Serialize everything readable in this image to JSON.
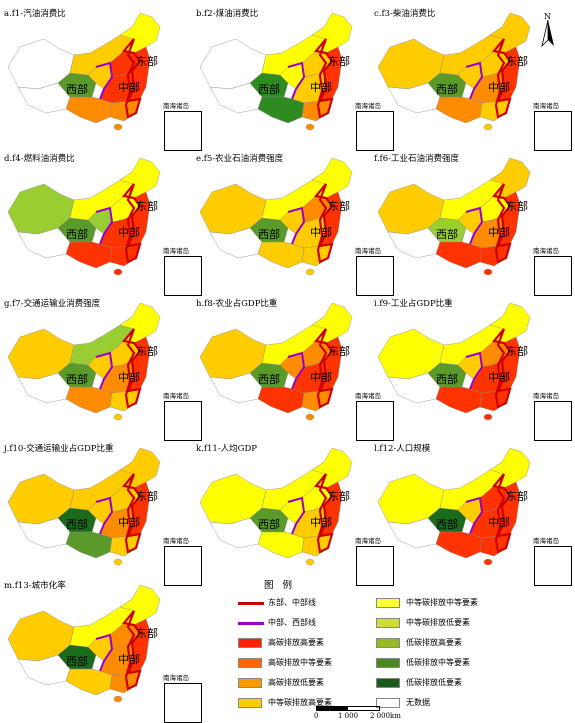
{
  "panels": [
    {
      "title": "a.f1-汽油消费比",
      "colors": {
        "northeast": "#ffff00",
        "north": "#ff3300",
        "east": "#ff3300",
        "central": "#ff3300",
        "south": "#ff8c00",
        "southwest": "#ff8c00",
        "northwest": "#ffcc00",
        "tibet": "#ffffff",
        "xinjiang": "#ffffff",
        "inner": "#ffcc00",
        "qinghai": "#5a9a2a"
      }
    },
    {
      "title": "b.f2-煤油消费比",
      "colors": {
        "northeast": "#ffff00",
        "north": "#ffcc00",
        "east": "#ff3300",
        "central": "#ffcc00",
        "south": "#ff8c00",
        "southwest": "#2e8b1f",
        "northwest": "#ffff00",
        "tibet": "#ffffff",
        "xinjiang": "#ffffff",
        "inner": "#ffff00",
        "qinghai": "#2e8b1f"
      }
    },
    {
      "title": "c.f3-柴油消费比",
      "colors": {
        "northeast": "#ffcc00",
        "north": "#ffcc00",
        "east": "#ff3300",
        "central": "#ff8c00",
        "south": "#ffcc00",
        "southwest": "#ff8c00",
        "northwest": "#ffcc00",
        "tibet": "#ffffff",
        "xinjiang": "#ffcc00",
        "inner": "#ffcc00",
        "qinghai": "#5a9a2a"
      }
    },
    {
      "title": "d.f4-燃料油消费比",
      "colors": {
        "northeast": "#ffff00",
        "north": "#ffff00",
        "east": "#ff3300",
        "central": "#ff3300",
        "south": "#ff3300",
        "southwest": "#ff3300",
        "northwest": "#9acd32",
        "tibet": "#ffffff",
        "xinjiang": "#9acd32",
        "inner": "#ffff00",
        "qinghai": "#5a9a2a"
      }
    },
    {
      "title": "e.f5-农业石油消费强度",
      "colors": {
        "northeast": "#ffff00",
        "north": "#ff8c00",
        "east": "#ff3300",
        "central": "#ffcc00",
        "south": "#ffcc00",
        "southwest": "#ffcc00",
        "northwest": "#ffcc00",
        "tibet": "#ffffff",
        "xinjiang": "#ffcc00",
        "inner": "#ffff00",
        "qinghai": "#5a9a2a"
      }
    },
    {
      "title": "f.f6-工业石油消费强度",
      "colors": {
        "northeast": "#ffcc00",
        "north": "#ffff00",
        "east": "#ff3300",
        "central": "#ff8c00",
        "south": "#ff3300",
        "southwest": "#ff3300",
        "northwest": "#ffcc00",
        "tibet": "#ffffff",
        "xinjiang": "#ffcc00",
        "inner": "#ffff00",
        "qinghai": "#9acd32"
      }
    },
    {
      "title": "g.f7-交通运输业消费强度",
      "colors": {
        "northeast": "#ffff00",
        "north": "#ffcc00",
        "east": "#ff3300",
        "central": "#ff8c00",
        "south": "#ffcc00",
        "southwest": "#ff8c00",
        "northwest": "#ffcc00",
        "tibet": "#ffffff",
        "xinjiang": "#ffcc00",
        "inner": "#9acd32",
        "qinghai": "#5a9a2a"
      }
    },
    {
      "title": "h.f8-农业占GDP比重",
      "colors": {
        "northeast": "#ffff00",
        "north": "#ff8c00",
        "east": "#ff3300",
        "central": "#ff3300",
        "south": "#ff8c00",
        "southwest": "#ff3300",
        "northwest": "#ff8c00",
        "tibet": "#ffffff",
        "xinjiang": "#ffcc00",
        "inner": "#ffff00",
        "qinghai": "#5a9a2a"
      }
    },
    {
      "title": "i.f9-工业占GDP比重",
      "colors": {
        "northeast": "#ffff00",
        "north": "#ff8c00",
        "east": "#ff3300",
        "central": "#ff3300",
        "south": "#ff3300",
        "southwest": "#ff3300",
        "northwest": "#ffcc00",
        "tibet": "#ffffff",
        "xinjiang": "#ffff00",
        "inner": "#ffff00",
        "qinghai": "#5a9a2a"
      }
    },
    {
      "title": "j.f10-交通运输业占GDP比重",
      "colors": {
        "northeast": "#ffcc00",
        "north": "#ffcc00",
        "east": "#ff3300",
        "central": "#ff8c00",
        "south": "#ffcc00",
        "southwest": "#5a9a2a",
        "northwest": "#ffcc00",
        "tibet": "#ffffff",
        "xinjiang": "#ffcc00",
        "inner": "#ffcc00",
        "qinghai": "#1a6b1a"
      }
    },
    {
      "title": "k.f11-人均GDP",
      "colors": {
        "northeast": "#ffff00",
        "north": "#ffff00",
        "east": "#ff3300",
        "central": "#ffcc00",
        "south": "#ffcc00",
        "southwest": "#ffff00",
        "northwest": "#ffff00",
        "tibet": "#ffffff",
        "xinjiang": "#ffff00",
        "inner": "#ffff00",
        "qinghai": "#5a9a2a"
      }
    },
    {
      "title": "l.f12-人口规模",
      "colors": {
        "northeast": "#ffff00",
        "north": "#ff3300",
        "east": "#ff3300",
        "central": "#ff3300",
        "south": "#ff3300",
        "southwest": "#ff3300",
        "northwest": "#ffcc00",
        "tibet": "#ffffff",
        "xinjiang": "#ffff00",
        "inner": "#ffff00",
        "qinghai": "#1a6b1a"
      }
    },
    {
      "title": "m.f13-城市化率",
      "colors": {
        "northeast": "#ffff00",
        "north": "#ff8c00",
        "east": "#ff3300",
        "central": "#ff8c00",
        "south": "#ff8c00",
        "southwest": "#ffcc00",
        "northwest": "#ffcc00",
        "tibet": "#ffffff",
        "xinjiang": "#ffcc00",
        "inner": "#ffff00",
        "qinghai": "#1a6b1a"
      }
    }
  ],
  "region_labels": {
    "east": "东部",
    "central": "中部",
    "west": "西部"
  },
  "inset_title": "南海诸岛",
  "north_label": "N",
  "legend": {
    "title": "图 例",
    "items": [
      {
        "type": "line",
        "color": "#cc0000",
        "label": "东部、中部线"
      },
      {
        "type": "line",
        "color": "#9900cc",
        "label": "中部、西部线"
      },
      {
        "type": "fill",
        "color": "#ff2200",
        "label": "高碳排放高要素"
      },
      {
        "type": "fill",
        "color": "#ff6600",
        "label": "高碳排放中等要素"
      },
      {
        "type": "fill",
        "color": "#ff9900",
        "label": "高碳排放低要素"
      },
      {
        "type": "fill",
        "color": "#ffcc00",
        "label": "中等碳排放高要素"
      },
      {
        "type": "fill",
        "color": "#ffff33",
        "label": "中等碳排放中等要素"
      },
      {
        "type": "fill",
        "color": "#ccdd33",
        "label": "中等碳排放低要素"
      },
      {
        "type": "fill",
        "color": "#99bb22",
        "label": "低碳排放高要素"
      },
      {
        "type": "fill",
        "color": "#4a8a1a",
        "label": "低碳排放中等要素"
      },
      {
        "type": "fill",
        "color": "#1a5a1a",
        "label": "低碳排放低要素"
      },
      {
        "type": "fill",
        "color": "#ffffff",
        "label": "无数据"
      }
    ]
  },
  "scale": {
    "ticks": [
      "0",
      "1 000",
      "2 000km"
    ]
  }
}
